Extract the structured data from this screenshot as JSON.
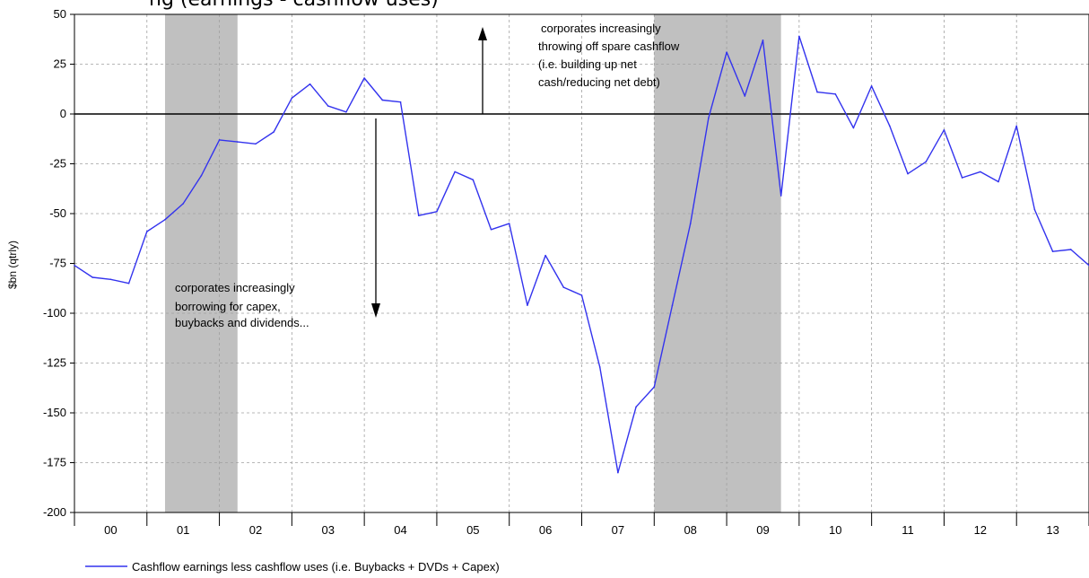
{
  "top_text": "ng (earnings - cashflow uses)",
  "chart_data": {
    "type": "line",
    "ylabel": "$bn (qtrly)",
    "ylim": [
      -200,
      50
    ],
    "yticks": [
      50,
      25,
      0,
      -25,
      -50,
      -75,
      -100,
      -125,
      -150,
      -175,
      -200
    ],
    "ytick_labels": [
      "50",
      "25",
      "0",
      "-25",
      "-50",
      "-75",
      "-100",
      "-125",
      "-150",
      "-175",
      "-200"
    ],
    "x_range": [
      1999.75,
      2013.75
    ],
    "xtick_labels": [
      "00",
      "01",
      "02",
      "03",
      "04",
      "05",
      "06",
      "07",
      "08",
      "09",
      "10",
      "11",
      "12",
      "13"
    ],
    "grid": true,
    "line_color": "#3333ee",
    "shade_color": "#c0c0c0",
    "recessions": [
      [
        2001.0,
        2002.0
      ],
      [
        2007.75,
        2009.5
      ]
    ],
    "series": [
      {
        "name": "Cashflow earnings less cashflow uses (i.e. Buybacks + DVDs + Capex)",
        "x": [
          1999.75,
          2000.0,
          2000.25,
          2000.5,
          2000.75,
          2001.0,
          2001.25,
          2001.5,
          2001.75,
          2002.0,
          2002.25,
          2002.5,
          2002.75,
          2003.0,
          2003.25,
          2003.5,
          2003.75,
          2004.0,
          2004.25,
          2004.5,
          2004.75,
          2005.0,
          2005.25,
          2005.5,
          2005.75,
          2006.0,
          2006.25,
          2006.5,
          2006.75,
          2007.0,
          2007.25,
          2007.5,
          2007.75,
          2008.0,
          2008.25,
          2008.5,
          2008.75,
          2009.0,
          2009.25,
          2009.5,
          2009.75,
          2010.0,
          2010.25,
          2010.5,
          2010.75,
          2011.0,
          2011.25,
          2011.5,
          2011.75,
          2012.0,
          2012.25,
          2012.5,
          2012.75,
          2013.0,
          2013.25,
          2013.5,
          2013.75
        ],
        "y": [
          -76,
          -82,
          -83,
          -85,
          -59,
          -53,
          -45,
          -31,
          -13,
          -14,
          -15,
          -9,
          8,
          15,
          4,
          1,
          18,
          7,
          6,
          -51,
          -49,
          -29,
          -33,
          -58,
          -55,
          -96,
          -71,
          -87,
          -91,
          -127,
          -180,
          -147,
          -137,
          -96,
          -55,
          -2,
          31,
          9,
          37,
          -41,
          39,
          11,
          10,
          -7,
          14,
          -6,
          -30,
          -24,
          -8,
          -32,
          -29,
          -34,
          -6,
          -48,
          -69,
          -68,
          -76
        ]
      }
    ],
    "annotations": [
      {
        "lines": [
          "corporates increasingly",
          "throwing off spare cashflow",
          "(i.e. building up net",
          "cash/reducing net debt)"
        ],
        "arrow": "up"
      },
      {
        "lines": [
          "corporates increasingly",
          "borrowing for capex,",
          "buybacks and dividends..."
        ],
        "arrow": "down"
      }
    ]
  }
}
